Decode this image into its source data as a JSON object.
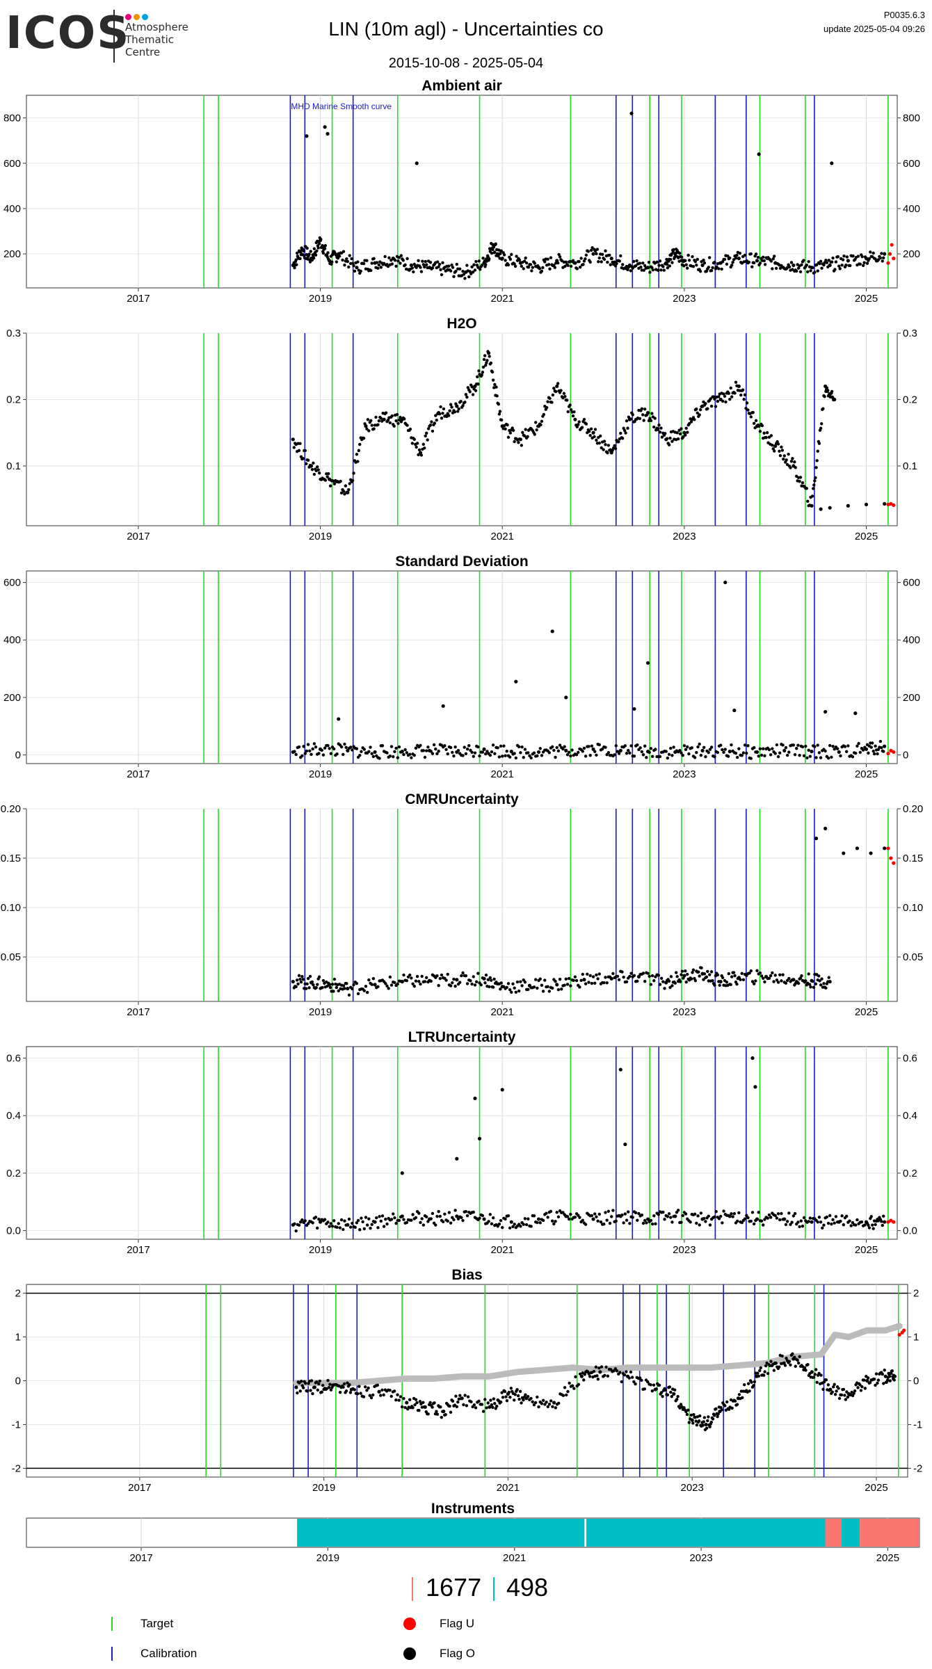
{
  "header": {
    "logo_word": "ICOS",
    "logo_lines": [
      "Atmosphere",
      "Thematic",
      "Centre"
    ],
    "logo_dot_colors": [
      "#e6007e",
      "#f39200",
      "#009fe3"
    ],
    "title": "LIN  (10m agl) - Uncertainties co",
    "date_range": "2015-10-08 - 2025-05-04",
    "code": "P0035.6.3",
    "update": "update  2025-05-04 09:26"
  },
  "colors": {
    "target": "#22dd22",
    "calibration": "#1a1ac8",
    "flag_u": "#ff0000",
    "flag_o": "#000000",
    "smooth": "#bbbbbb",
    "instrument_a": "#00bfc4",
    "instrument_b": "#f8766d"
  },
  "x_axis": {
    "domain": [
      2015.77,
      2025.34
    ],
    "tick_values": [
      2017,
      2019,
      2021,
      2023,
      2025
    ],
    "tick_labels": [
      "2017",
      "2019",
      "2021",
      "2023",
      "2025"
    ]
  },
  "target_lines": [
    2017.72,
    2017.88,
    2019.13,
    2019.85,
    2020.75,
    2021.75,
    2022.62,
    2022.97,
    2023.83,
    2024.33,
    2025.24
  ],
  "calibration_lines": [
    2018.67,
    2018.83,
    2019.36,
    2022.25,
    2022.43,
    2022.72,
    2023.34,
    2023.68,
    2024.43
  ],
  "chart_data": [
    {
      "type": "scatter",
      "title": "Ambient air",
      "annotation": "MHD Marine Smooth curve",
      "ylim": [
        50,
        900
      ],
      "y_ticks": [
        200,
        400,
        600,
        800
      ],
      "y_tick_labels": [
        "200",
        "400",
        "600",
        "800"
      ],
      "grid": true,
      "series": [
        {
          "role": "flag_o",
          "x": [
            2018.7,
            2018.8,
            2018.9,
            2019.0,
            2019.1,
            2019.2,
            2019.4,
            2019.6,
            2019.8,
            2020.0,
            2020.2,
            2020.4,
            2020.6,
            2020.8,
            2020.9,
            2021.0,
            2021.2,
            2021.4,
            2021.6,
            2021.8,
            2022.0,
            2022.2,
            2022.4,
            2022.6,
            2022.8,
            2022.9,
            2023.0,
            2023.2,
            2023.4,
            2023.6,
            2023.8,
            2024.0,
            2024.2,
            2024.4,
            2024.6,
            2024.8,
            2025.0,
            2025.2
          ],
          "y": [
            150,
            220,
            180,
            260,
            170,
            200,
            140,
            160,
            180,
            150,
            140,
            130,
            120,
            160,
            240,
            180,
            160,
            140,
            170,
            160,
            200,
            180,
            150,
            140,
            160,
            200,
            170,
            150,
            160,
            180,
            170,
            160,
            150,
            140,
            150,
            170,
            180,
            200
          ]
        },
        {
          "role": "flag_o_spikes",
          "x": [
            2018.85,
            2019.05,
            2019.08,
            2020.06,
            2022.42,
            2023.82,
            2024.62
          ],
          "y": [
            720,
            760,
            730,
            600,
            820,
            640,
            600
          ]
        },
        {
          "role": "flag_u",
          "x": [
            2025.24,
            2025.26,
            2025.28,
            2025.3
          ],
          "y": [
            160,
            200,
            240,
            180
          ]
        }
      ]
    },
    {
      "type": "scatter",
      "title": "H2O",
      "ylim": [
        0.01,
        0.3
      ],
      "y_ticks": [
        0.1,
        0.2,
        0.3
      ],
      "y_tick_labels": [
        "0.1",
        "0.2",
        "0.3"
      ],
      "grid": true,
      "series": [
        {
          "role": "flag_o",
          "x": [
            2018.7,
            2018.9,
            2019.1,
            2019.3,
            2019.5,
            2019.7,
            2019.9,
            2020.1,
            2020.3,
            2020.5,
            2020.7,
            2020.85,
            2021.0,
            2021.2,
            2021.4,
            2021.6,
            2021.8,
            2022.0,
            2022.2,
            2022.4,
            2022.6,
            2022.8,
            2023.0,
            2023.2,
            2023.4,
            2023.6,
            2023.8,
            2024.0,
            2024.2,
            2024.4,
            2024.55,
            2024.65
          ],
          "y": [
            0.14,
            0.1,
            0.08,
            0.06,
            0.16,
            0.17,
            0.17,
            0.12,
            0.18,
            0.19,
            0.22,
            0.27,
            0.16,
            0.14,
            0.16,
            0.22,
            0.17,
            0.15,
            0.12,
            0.17,
            0.18,
            0.14,
            0.15,
            0.19,
            0.2,
            0.22,
            0.16,
            0.13,
            0.1,
            0.04,
            0.22,
            0.2
          ]
        },
        {
          "role": "flag_o_low",
          "x": [
            2024.5,
            2024.6,
            2024.8,
            2025.0,
            2025.2
          ],
          "y": [
            0.035,
            0.037,
            0.04,
            0.042,
            0.043
          ]
        },
        {
          "role": "flag_u",
          "x": [
            2025.24,
            2025.27,
            2025.3
          ],
          "y": [
            0.042,
            0.043,
            0.041
          ]
        }
      ]
    },
    {
      "type": "scatter",
      "title": "Standard Deviation",
      "ylim": [
        -30,
        640
      ],
      "y_ticks": [
        0,
        200,
        400,
        600
      ],
      "y_tick_labels": [
        "0",
        "200",
        "400",
        "600"
      ],
      "grid": true,
      "series": [
        {
          "role": "flag_o",
          "x": [
            2018.7,
            2019.0,
            2019.3,
            2019.6,
            2019.9,
            2020.2,
            2020.5,
            2020.8,
            2021.1,
            2021.4,
            2021.7,
            2022.0,
            2022.3,
            2022.6,
            2022.9,
            2023.2,
            2023.5,
            2023.8,
            2024.1,
            2024.4,
            2024.7,
            2025.0,
            2025.2
          ],
          "y": [
            10,
            20,
            15,
            10,
            12,
            15,
            10,
            20,
            12,
            10,
            15,
            20,
            15,
            12,
            10,
            15,
            12,
            10,
            15,
            12,
            10,
            20,
            30
          ]
        },
        {
          "role": "flag_o_spikes",
          "x": [
            2019.2,
            2020.35,
            2021.15,
            2021.55,
            2021.7,
            2022.45,
            2022.6,
            2023.45,
            2023.55,
            2024.55,
            2024.88
          ],
          "y": [
            125,
            170,
            255,
            430,
            200,
            160,
            320,
            600,
            155,
            150,
            145
          ]
        },
        {
          "role": "flag_u",
          "x": [
            2025.24,
            2025.27,
            2025.3
          ],
          "y": [
            5,
            15,
            10
          ]
        }
      ]
    },
    {
      "type": "scatter",
      "title": "CMRUncertainty",
      "ylim": [
        0.005,
        0.2
      ],
      "y_ticks": [
        0.05,
        0.1,
        0.15,
        0.2
      ],
      "y_tick_labels": [
        "0.05",
        "0.10",
        "0.15",
        "0.20"
      ],
      "grid": true,
      "series": [
        {
          "role": "flag_o",
          "x": [
            2018.7,
            2018.9,
            2019.1,
            2019.3,
            2019.6,
            2019.9,
            2020.2,
            2020.5,
            2020.8,
            2021.0,
            2021.3,
            2021.6,
            2021.9,
            2022.2,
            2022.5,
            2022.8,
            2023.0,
            2023.2,
            2023.4,
            2023.6,
            2023.9,
            2024.2,
            2024.4,
            2024.6
          ],
          "y": [
            0.025,
            0.024,
            0.022,
            0.018,
            0.022,
            0.025,
            0.026,
            0.027,
            0.028,
            0.02,
            0.021,
            0.022,
            0.027,
            0.028,
            0.03,
            0.024,
            0.031,
            0.033,
            0.025,
            0.029,
            0.03,
            0.027,
            0.026,
            0.025
          ]
        },
        {
          "role": "flag_o_high",
          "x": [
            2024.45,
            2024.55,
            2024.75,
            2024.9,
            2025.05,
            2025.2
          ],
          "y": [
            0.17,
            0.18,
            0.155,
            0.16,
            0.155,
            0.16
          ]
        },
        {
          "role": "flag_u",
          "x": [
            2025.24,
            2025.27,
            2025.3
          ],
          "y": [
            0.16,
            0.15,
            0.145
          ]
        }
      ]
    },
    {
      "type": "scatter",
      "title": "LTRUncertainty",
      "ylim": [
        -0.03,
        0.64
      ],
      "y_ticks": [
        0.0,
        0.2,
        0.4,
        0.6
      ],
      "y_tick_labels": [
        "0.0",
        "0.2",
        "0.4",
        "0.6"
      ],
      "grid": true,
      "series": [
        {
          "role": "flag_o",
          "x": [
            2018.7,
            2019.0,
            2019.3,
            2019.6,
            2019.9,
            2020.2,
            2020.5,
            2020.8,
            2021.1,
            2021.4,
            2021.7,
            2022.0,
            2022.3,
            2022.6,
            2022.9,
            2023.2,
            2023.5,
            2023.8,
            2024.1,
            2024.4,
            2024.7,
            2025.0,
            2025.2
          ],
          "y": [
            0.02,
            0.03,
            0.02,
            0.03,
            0.05,
            0.04,
            0.05,
            0.04,
            0.03,
            0.04,
            0.05,
            0.04,
            0.05,
            0.04,
            0.05,
            0.04,
            0.05,
            0.04,
            0.04,
            0.03,
            0.03,
            0.03,
            0.03
          ]
        },
        {
          "role": "flag_o_spikes",
          "x": [
            2019.9,
            2020.5,
            2020.7,
            2020.75,
            2021.0,
            2022.3,
            2022.35,
            2023.75,
            2023.78
          ],
          "y": [
            0.2,
            0.25,
            0.46,
            0.32,
            0.49,
            0.56,
            0.3,
            0.6,
            0.5
          ]
        },
        {
          "role": "flag_u",
          "x": [
            2025.24,
            2025.27,
            2025.3
          ],
          "y": [
            0.03,
            0.035,
            0.03
          ]
        }
      ]
    },
    {
      "type": "line",
      "title": "Bias",
      "ylim": [
        -2.2,
        2.2
      ],
      "y_ticks": [
        -2,
        -1,
        0,
        1,
        2
      ],
      "y_tick_labels": [
        "-2",
        "-1",
        "0",
        "1",
        "2"
      ],
      "hlines": [
        -2,
        2
      ],
      "grid": true,
      "series": [
        {
          "role": "smooth",
          "x": [
            2018.7,
            2019.0,
            2019.3,
            2019.6,
            2019.9,
            2020.2,
            2020.5,
            2020.8,
            2021.1,
            2021.4,
            2021.7,
            2022.0,
            2022.3,
            2022.6,
            2022.9,
            2023.2,
            2023.5,
            2023.8,
            2024.1,
            2024.4,
            2024.55,
            2024.7,
            2024.9,
            2025.1,
            2025.25
          ],
          "y": [
            -0.05,
            -0.05,
            -0.05,
            0.0,
            0.05,
            0.05,
            0.1,
            0.1,
            0.2,
            0.25,
            0.3,
            0.25,
            0.3,
            0.3,
            0.3,
            0.3,
            0.35,
            0.4,
            0.55,
            0.6,
            1.05,
            1.0,
            1.15,
            1.15,
            1.25
          ]
        },
        {
          "role": "flag_o",
          "x": [
            2018.7,
            2018.9,
            2019.1,
            2019.3,
            2019.6,
            2019.9,
            2020.1,
            2020.3,
            2020.5,
            2020.8,
            2021.0,
            2021.2,
            2021.5,
            2021.8,
            2022.0,
            2022.3,
            2022.6,
            2022.8,
            2023.0,
            2023.15,
            2023.3,
            2023.5,
            2023.7,
            2023.9,
            2024.1,
            2024.3,
            2024.5,
            2024.7,
            2024.9,
            2025.1,
            2025.2
          ],
          "y": [
            -0.15,
            -0.15,
            -0.1,
            -0.2,
            -0.25,
            -0.5,
            -0.6,
            -0.7,
            -0.4,
            -0.6,
            -0.3,
            -0.4,
            -0.5,
            0.1,
            0.2,
            0.1,
            -0.2,
            -0.3,
            -0.9,
            -1.0,
            -0.7,
            -0.4,
            0.1,
            0.4,
            0.5,
            0.2,
            -0.2,
            -0.3,
            0.0,
            0.1,
            0.1
          ]
        },
        {
          "role": "flag_u",
          "x": [
            2025.25,
            2025.28,
            2025.3
          ],
          "y": [
            1.05,
            1.1,
            1.15
          ]
        }
      ]
    },
    {
      "type": "bar",
      "title": "Instruments",
      "segments": [
        {
          "start": 2018.67,
          "end": 2021.75,
          "role": "instrument_a"
        },
        {
          "start": 2021.77,
          "end": 2024.33,
          "role": "instrument_a"
        },
        {
          "start": 2024.33,
          "end": 2024.5,
          "role": "instrument_b"
        },
        {
          "start": 2024.5,
          "end": 2024.7,
          "role": "instrument_a"
        },
        {
          "start": 2024.7,
          "end": 2025.34,
          "role": "instrument_b"
        }
      ]
    }
  ],
  "instrument_counts": [
    {
      "value": "1677",
      "role": "instrument_b"
    },
    {
      "value": "498",
      "role": "instrument_a"
    }
  ],
  "legend": {
    "target": "Target",
    "calibration": "Calibration",
    "flag_u": "Flag U",
    "flag_o": "Flag O"
  }
}
